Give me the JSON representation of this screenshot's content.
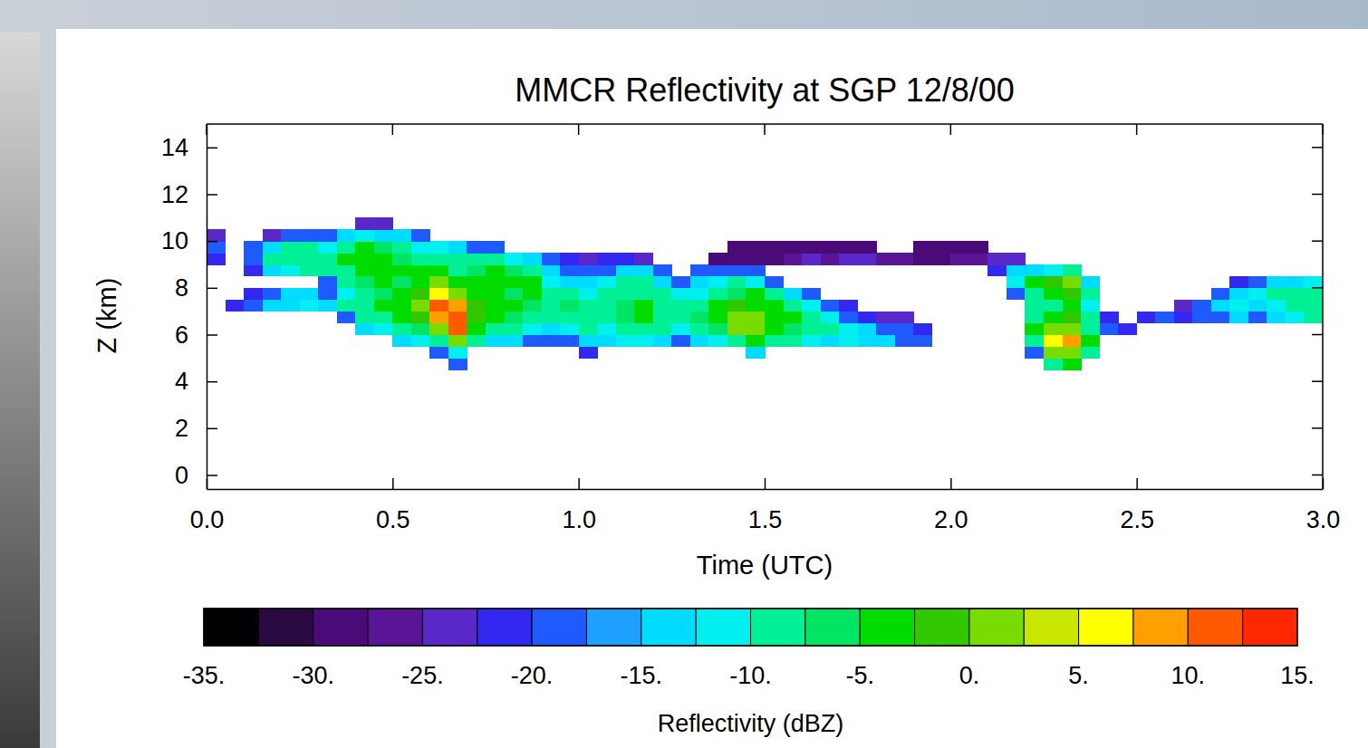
{
  "chart_data": {
    "type": "heatmap",
    "title": "MMCR Reflectivity at SGP 12/8/00",
    "x_label": "Time (UTC)",
    "y_label": "Z (km)",
    "xlim": [
      0,
      3
    ],
    "ylim": [
      -0.6,
      15
    ],
    "xticks": [
      {
        "value": 0,
        "label": "0.0"
      },
      {
        "value": 0.5,
        "label": "0.5"
      },
      {
        "value": 1,
        "label": "1.0"
      },
      {
        "value": 1.5,
        "label": "1.5"
      },
      {
        "value": 2,
        "label": "2.0"
      },
      {
        "value": 2.5,
        "label": "2.5"
      },
      {
        "value": 3,
        "label": "3.0"
      }
    ],
    "yticks": [
      0,
      2,
      4,
      6,
      8,
      10,
      12,
      14
    ],
    "x_bins": [
      0,
      0.05,
      0.1,
      0.15,
      0.2,
      0.25,
      0.3,
      0.35,
      0.4,
      0.45,
      0.5,
      0.55,
      0.6,
      0.65,
      0.7,
      0.75,
      0.8,
      0.85,
      0.9,
      0.95,
      1,
      1.05,
      1.1,
      1.15,
      1.2,
      1.25,
      1.3,
      1.35,
      1.4,
      1.45,
      1.5,
      1.55,
      1.6,
      1.65,
      1.7,
      1.75,
      1.8,
      1.85,
      1.9,
      1.95,
      2,
      2.05,
      2.1,
      2.15,
      2.2,
      2.25,
      2.3,
      2.35,
      2.4,
      2.45,
      2.5,
      2.55,
      2.6,
      2.65,
      2.7,
      2.75,
      2.8,
      2.85,
      2.9,
      2.95,
      3
    ],
    "y_bins": [
      4.5,
      5,
      5.5,
      6,
      6.5,
      7,
      7.5,
      8,
      8.5,
      9,
      9.5,
      10,
      10.5,
      11
    ],
    "values": [
      [
        null,
        null,
        null,
        null,
        null,
        null,
        null,
        null,
        null,
        null,
        null,
        null,
        null,
        -20,
        null,
        null,
        null,
        null,
        null,
        null,
        null,
        null,
        null,
        null,
        null,
        null,
        null,
        null,
        null,
        null,
        null,
        null,
        null,
        null,
        null,
        null,
        null,
        null,
        null,
        null,
        null,
        null,
        null,
        null,
        null,
        -10,
        -5,
        null,
        null,
        null,
        null,
        null,
        null,
        null,
        null,
        null,
        null,
        null,
        null,
        null
      ],
      [
        null,
        null,
        null,
        null,
        null,
        null,
        null,
        null,
        null,
        null,
        null,
        null,
        -20,
        -12,
        null,
        null,
        null,
        null,
        null,
        null,
        -22,
        null,
        null,
        null,
        null,
        null,
        null,
        null,
        null,
        -15,
        null,
        null,
        null,
        null,
        null,
        null,
        null,
        null,
        null,
        null,
        null,
        null,
        null,
        null,
        -18,
        0,
        2,
        -10,
        null,
        null,
        null,
        null,
        null,
        null,
        null,
        null,
        null,
        null,
        null,
        null
      ],
      [
        null,
        null,
        null,
        null,
        null,
        null,
        null,
        null,
        null,
        null,
        -15,
        -12,
        -8,
        0,
        -10,
        -15,
        -15,
        -18,
        -20,
        -18,
        -15,
        -15,
        -12,
        -12,
        -15,
        -18,
        -15,
        -12,
        -8,
        -5,
        -8,
        -10,
        -12,
        -14,
        -12,
        -14,
        -15,
        -18,
        -20,
        null,
        null,
        null,
        null,
        null,
        -10,
        5,
        8,
        -5,
        null,
        null,
        null,
        null,
        null,
        null,
        null,
        null,
        null,
        null,
        null,
        null
      ],
      [
        null,
        null,
        null,
        null,
        null,
        null,
        null,
        null,
        -15,
        -12,
        -10,
        -6,
        2,
        10,
        -5,
        -10,
        -10,
        -12,
        -15,
        -12,
        -10,
        -12,
        -8,
        -8,
        -10,
        -12,
        -10,
        -6,
        0,
        2,
        -4,
        -6,
        -8,
        -10,
        -12,
        -15,
        -18,
        -20,
        -22,
        null,
        null,
        null,
        null,
        null,
        -5,
        0,
        2,
        -8,
        -20,
        -22,
        null,
        null,
        null,
        null,
        null,
        null,
        null,
        null,
        null,
        null
      ],
      [
        null,
        null,
        null,
        null,
        null,
        null,
        null,
        -18,
        -10,
        -8,
        -5,
        -2,
        8,
        12,
        -2,
        -5,
        -6,
        -8,
        -10,
        -8,
        -8,
        -10,
        -6,
        -5,
        -8,
        -10,
        -6,
        -3,
        2,
        0,
        -3,
        -5,
        -8,
        -12,
        -18,
        -22,
        -25,
        -25,
        null,
        null,
        null,
        null,
        null,
        null,
        -8,
        -5,
        -2,
        -10,
        -22,
        null,
        -22,
        -20,
        -22,
        -20,
        -18,
        -15,
        -18,
        -15,
        -12,
        -10
      ],
      [
        null,
        -22,
        -20,
        -15,
        -15,
        -12,
        -15,
        -10,
        -8,
        -5,
        -3,
        0,
        10,
        8,
        -2,
        -3,
        -5,
        -6,
        -8,
        -6,
        -8,
        -8,
        -6,
        -5,
        -8,
        -10,
        -8,
        -4,
        -2,
        -3,
        -5,
        -8,
        -12,
        -18,
        -22,
        null,
        null,
        null,
        null,
        null,
        null,
        null,
        null,
        null,
        -10,
        -8,
        -5,
        -12,
        null,
        null,
        null,
        null,
        -25,
        -18,
        -15,
        -12,
        -15,
        -12,
        -10,
        -8
      ],
      [
        null,
        null,
        -22,
        -18,
        -15,
        -15,
        -18,
        -12,
        -8,
        -6,
        -4,
        -2,
        5,
        2,
        -4,
        -4,
        -6,
        -5,
        -10,
        -10,
        -12,
        -10,
        -8,
        -8,
        -10,
        -12,
        -12,
        -8,
        -6,
        -5,
        -10,
        -15,
        -20,
        null,
        null,
        null,
        null,
        null,
        null,
        null,
        null,
        null,
        null,
        -18,
        -8,
        -5,
        -2,
        -10,
        null,
        null,
        null,
        null,
        null,
        null,
        -20,
        -15,
        -12,
        -10,
        -8,
        -8
      ],
      [
        null,
        null,
        null,
        null,
        null,
        null,
        -18,
        -10,
        -6,
        -5,
        -6,
        -4,
        0,
        -4,
        -5,
        -3,
        -4,
        -5,
        -12,
        -15,
        -15,
        -12,
        -10,
        -10,
        -15,
        -18,
        -15,
        -12,
        -10,
        -12,
        -18,
        null,
        null,
        null,
        null,
        null,
        null,
        null,
        null,
        null,
        null,
        null,
        null,
        -12,
        -5,
        -2,
        0,
        -15,
        null,
        null,
        null,
        null,
        null,
        null,
        null,
        -22,
        -18,
        -15,
        -15,
        -12
      ],
      [
        null,
        null,
        -22,
        -15,
        -12,
        -10,
        -10,
        -8,
        -5,
        -4,
        -5,
        -5,
        -5,
        -8,
        -6,
        -5,
        -6,
        -8,
        -15,
        -18,
        -20,
        -18,
        -15,
        -15,
        -20,
        null,
        -20,
        -18,
        -18,
        -20,
        null,
        null,
        null,
        null,
        null,
        null,
        null,
        null,
        null,
        null,
        null,
        null,
        -22,
        -15,
        -15,
        -12,
        -10,
        null,
        null,
        null,
        null,
        null,
        null,
        null,
        null,
        null,
        null,
        null,
        null,
        null
      ],
      [
        -22,
        null,
        -18,
        -10,
        -8,
        -10,
        -8,
        -5,
        -4,
        -5,
        -6,
        -8,
        -8,
        -10,
        -10,
        -8,
        -12,
        -15,
        -20,
        -22,
        -25,
        -22,
        -22,
        -25,
        null,
        null,
        null,
        -28,
        -28,
        -28,
        -28,
        -26,
        -25,
        -26,
        -24,
        -25,
        -26,
        -27,
        -28,
        -28,
        -26,
        -26,
        -24,
        -25,
        null,
        null,
        null,
        null,
        null,
        null,
        null,
        null,
        null,
        null,
        null,
        null,
        null,
        null,
        null,
        null
      ],
      [
        -20,
        null,
        -20,
        -15,
        -10,
        -10,
        -12,
        -8,
        -5,
        -6,
        -8,
        -12,
        -12,
        -15,
        -18,
        -18,
        null,
        null,
        null,
        null,
        null,
        null,
        null,
        null,
        null,
        null,
        null,
        null,
        -28,
        -30,
        -28,
        -28,
        -28,
        -28,
        -28,
        -28,
        null,
        null,
        -30,
        -28,
        -28,
        -30,
        null,
        null,
        null,
        null,
        null,
        null,
        null,
        null,
        null,
        null,
        null,
        null,
        null,
        null,
        null,
        null,
        null,
        null
      ],
      [
        -24,
        null,
        null,
        -25,
        -20,
        -18,
        -20,
        -15,
        -12,
        -15,
        -15,
        -20,
        null,
        null,
        null,
        null,
        null,
        null,
        null,
        null,
        null,
        null,
        null,
        null,
        null,
        null,
        null,
        null,
        null,
        null,
        null,
        null,
        null,
        null,
        null,
        null,
        null,
        null,
        null,
        null,
        null,
        null,
        null,
        null,
        null,
        null,
        null,
        null,
        null,
        null,
        null,
        null,
        null,
        null,
        null,
        null,
        null,
        null,
        null,
        null
      ],
      [
        null,
        null,
        null,
        null,
        null,
        null,
        null,
        null,
        -25,
        -25,
        null,
        null,
        null,
        null,
        null,
        null,
        null,
        null,
        null,
        null,
        null,
        null,
        null,
        null,
        null,
        null,
        null,
        null,
        null,
        null,
        null,
        null,
        null,
        null,
        null,
        null,
        null,
        null,
        null,
        null,
        null,
        null,
        null,
        null,
        null,
        null,
        null,
        null,
        null,
        null,
        null,
        null,
        null,
        null,
        null,
        null,
        null,
        null,
        null,
        null
      ]
    ],
    "colorbar": {
      "label": "Reflectivity (dBZ)",
      "range": [
        -35,
        15
      ],
      "ticks": [
        {
          "value": -35,
          "label": "-35."
        },
        {
          "value": -30,
          "label": "-30."
        },
        {
          "value": -25,
          "label": "-25."
        },
        {
          "value": -20,
          "label": "-20."
        },
        {
          "value": -15,
          "label": "-15."
        },
        {
          "value": -10,
          "label": "-10."
        },
        {
          "value": -5,
          "label": "-5."
        },
        {
          "value": 0,
          "label": "0."
        },
        {
          "value": 5,
          "label": "5."
        },
        {
          "value": 10,
          "label": "10."
        },
        {
          "value": 15,
          "label": "15."
        }
      ],
      "colors": [
        "#000000",
        "#2a0a40",
        "#4a0a78",
        "#5a1496",
        "#5a28c8",
        "#3228f0",
        "#1e5aff",
        "#1ea0ff",
        "#00dcff",
        "#00f0f0",
        "#00f096",
        "#00e664",
        "#00dc00",
        "#32c800",
        "#78dc00",
        "#c8e600",
        "#ffff00",
        "#ffa000",
        "#ff5a00",
        "#ff2800"
      ]
    }
  }
}
